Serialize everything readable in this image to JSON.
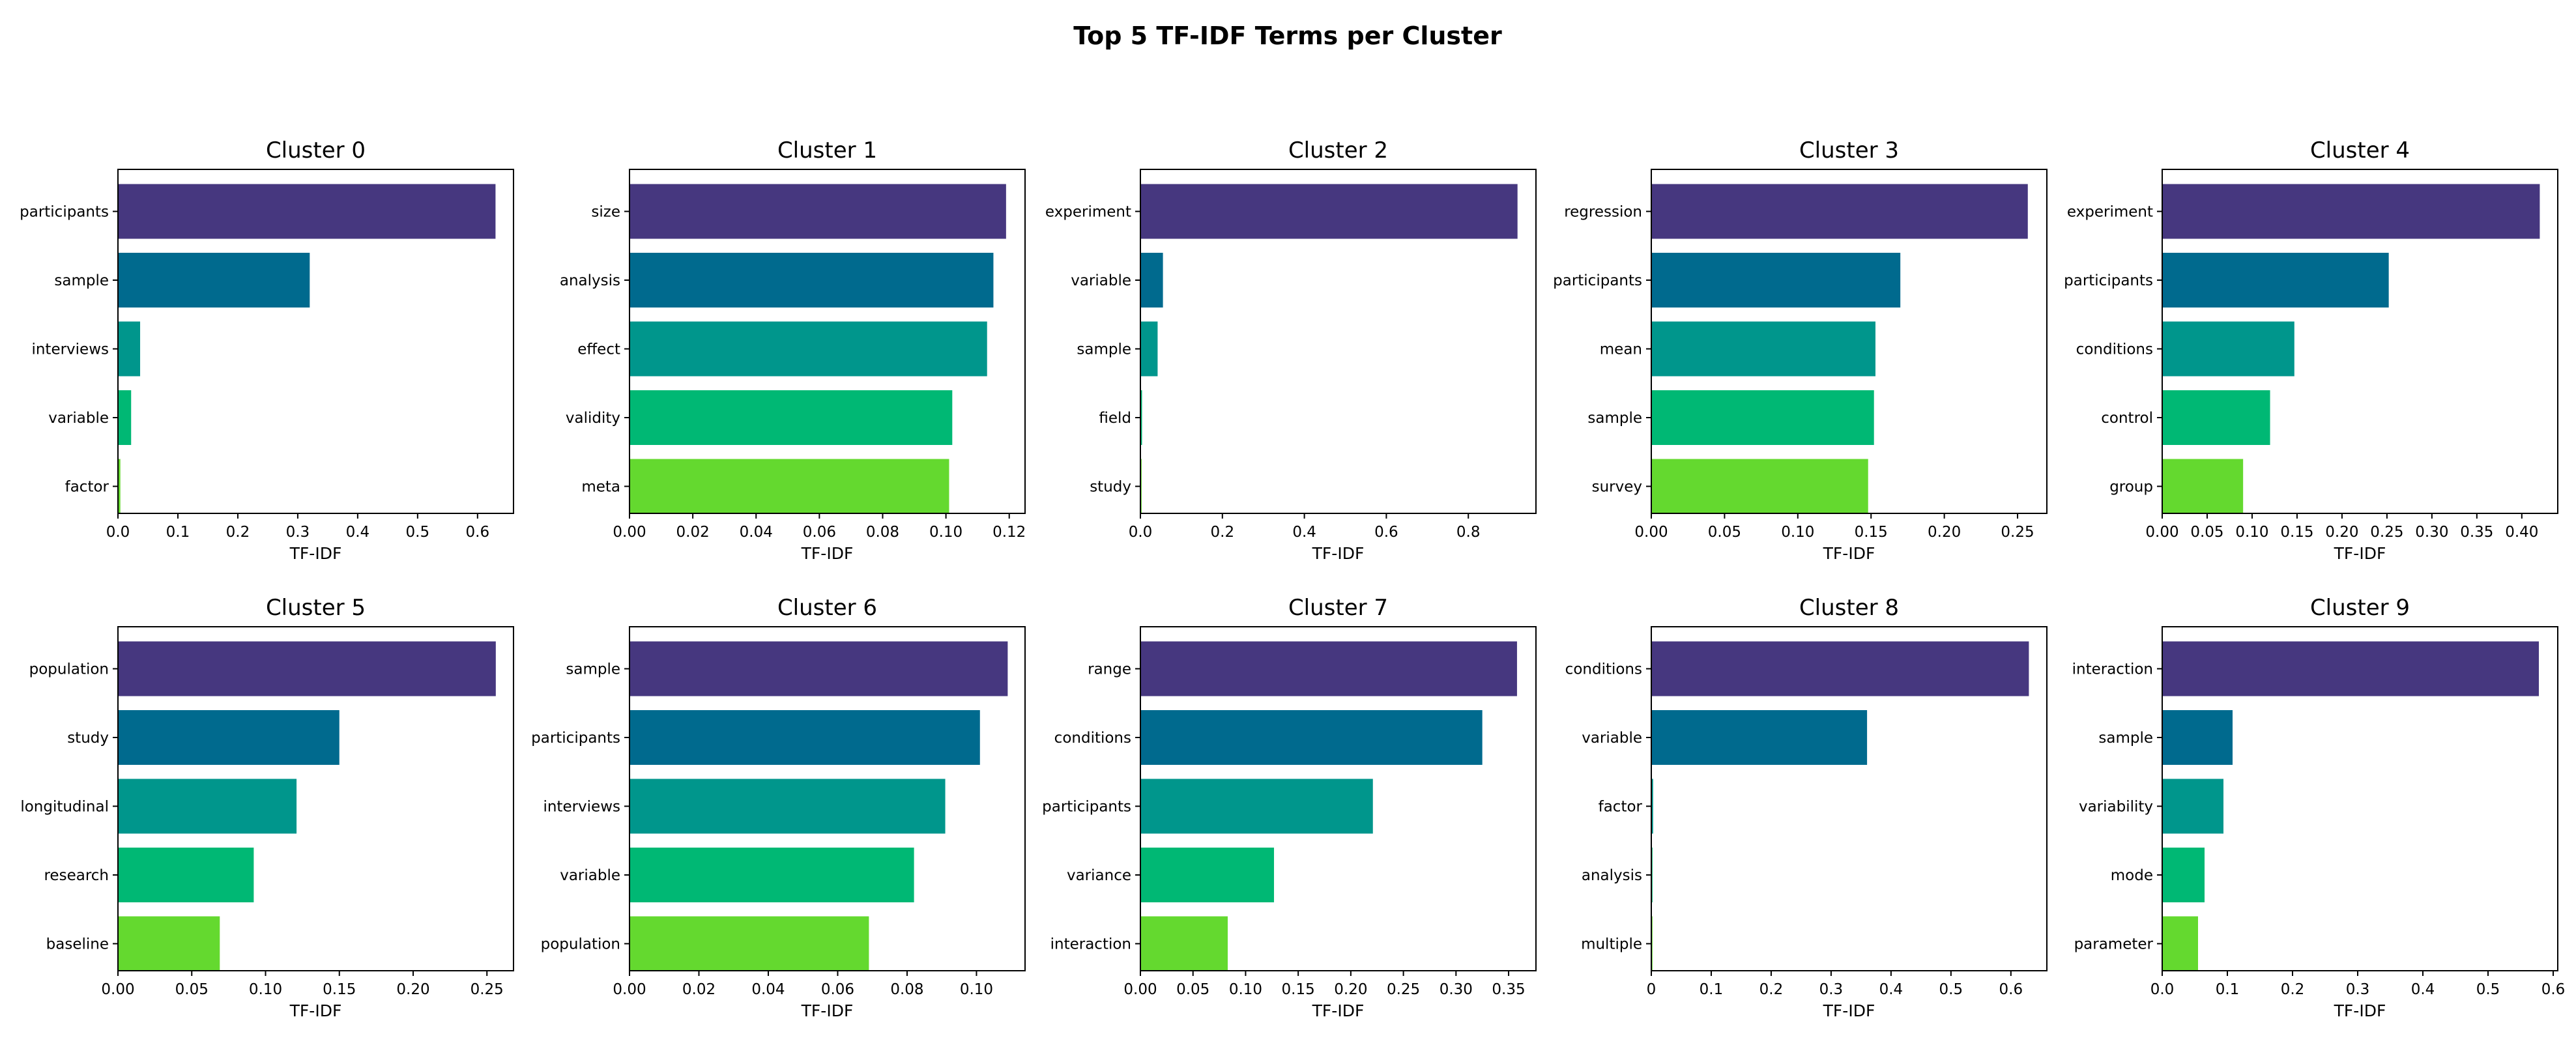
{
  "figure": {
    "title": "Top 5 TF-IDF Terms per Cluster"
  },
  "colors": [
    "#46377f",
    "#006a8e",
    "#00968c",
    "#00b874",
    "#64d92f"
  ],
  "chart_data": [
    {
      "type": "bar",
      "orientation": "horizontal",
      "title": "Cluster 0",
      "xlabel": "TF-IDF",
      "categories": [
        "participants",
        "sample",
        "interviews",
        "variable",
        "factor"
      ],
      "values": [
        0.63,
        0.32,
        0.037,
        0.022,
        0.004
      ],
      "xlim": [
        0,
        0.66
      ],
      "xticks": [
        0.0,
        0.1,
        0.2,
        0.3,
        0.4,
        0.5,
        0.6
      ],
      "xtick_labels": [
        "0.0",
        "0.1",
        "0.2",
        "0.3",
        "0.4",
        "0.5",
        "0.6"
      ]
    },
    {
      "type": "bar",
      "orientation": "horizontal",
      "title": "Cluster 1",
      "xlabel": "TF-IDF",
      "categories": [
        "size",
        "analysis",
        "effect",
        "validity",
        "meta"
      ],
      "values": [
        0.119,
        0.115,
        0.113,
        0.102,
        0.101
      ],
      "xlim": [
        0,
        0.125
      ],
      "xticks": [
        0.0,
        0.02,
        0.04,
        0.06,
        0.08,
        0.1,
        0.12
      ],
      "xtick_labels": [
        "0.00",
        "0.02",
        "0.04",
        "0.06",
        "0.08",
        "0.10",
        "0.12"
      ]
    },
    {
      "type": "bar",
      "orientation": "horizontal",
      "title": "Cluster 2",
      "xlabel": "TF-IDF",
      "categories": [
        "experiment",
        "variable",
        "sample",
        "field",
        "study"
      ],
      "values": [
        0.92,
        0.055,
        0.042,
        0.004,
        0.003
      ],
      "xlim": [
        0,
        0.965
      ],
      "xticks": [
        0.0,
        0.2,
        0.4,
        0.6,
        0.8
      ],
      "xtick_labels": [
        "0.0",
        "0.2",
        "0.4",
        "0.6",
        "0.8"
      ]
    },
    {
      "type": "bar",
      "orientation": "horizontal",
      "title": "Cluster 3",
      "xlabel": "TF-IDF",
      "categories": [
        "regression",
        "participants",
        "mean",
        "sample",
        "survey"
      ],
      "values": [
        0.257,
        0.17,
        0.153,
        0.152,
        0.148
      ],
      "xlim": [
        0,
        0.27
      ],
      "xticks": [
        0.0,
        0.05,
        0.1,
        0.15,
        0.2,
        0.25
      ],
      "xtick_labels": [
        "0.00",
        "0.05",
        "0.10",
        "0.15",
        "0.20",
        "0.25"
      ]
    },
    {
      "type": "bar",
      "orientation": "horizontal",
      "title": "Cluster 4",
      "xlabel": "TF-IDF",
      "categories": [
        "experiment",
        "participants",
        "conditions",
        "control",
        "group"
      ],
      "values": [
        0.42,
        0.252,
        0.147,
        0.12,
        0.09
      ],
      "xlim": [
        0,
        0.44
      ],
      "xticks": [
        0.0,
        0.05,
        0.1,
        0.15,
        0.2,
        0.25,
        0.3,
        0.35,
        0.4
      ],
      "xtick_labels": [
        "0.00",
        "0.05",
        "0.10",
        "0.15",
        "0.20",
        "0.25",
        "0.30",
        "0.35",
        "0.40"
      ]
    },
    {
      "type": "bar",
      "orientation": "horizontal",
      "title": "Cluster 5",
      "xlabel": "TF-IDF",
      "categories": [
        "population",
        "study",
        "longitudinal",
        "research",
        "baseline"
      ],
      "values": [
        0.256,
        0.15,
        0.121,
        0.092,
        0.069
      ],
      "xlim": [
        0,
        0.268
      ],
      "xticks": [
        0.0,
        0.05,
        0.1,
        0.15,
        0.2,
        0.25
      ],
      "xtick_labels": [
        "0.00",
        "0.05",
        "0.10",
        "0.15",
        "0.20",
        "0.25"
      ]
    },
    {
      "type": "bar",
      "orientation": "horizontal",
      "title": "Cluster 6",
      "xlabel": "TF-IDF",
      "categories": [
        "sample",
        "participants",
        "interviews",
        "variable",
        "population"
      ],
      "values": [
        0.109,
        0.101,
        0.091,
        0.082,
        0.069
      ],
      "xlim": [
        0,
        0.114
      ],
      "xticks": [
        0.0,
        0.02,
        0.04,
        0.06,
        0.08,
        0.1
      ],
      "xtick_labels": [
        "0.00",
        "0.02",
        "0.04",
        "0.06",
        "0.08",
        "0.10"
      ]
    },
    {
      "type": "bar",
      "orientation": "horizontal",
      "title": "Cluster 7",
      "xlabel": "TF-IDF",
      "categories": [
        "range",
        "conditions",
        "participants",
        "variance",
        "interaction"
      ],
      "values": [
        0.358,
        0.325,
        0.221,
        0.127,
        0.083
      ],
      "xlim": [
        0,
        0.376
      ],
      "xticks": [
        0.0,
        0.05,
        0.1,
        0.15,
        0.2,
        0.25,
        0.3,
        0.35
      ],
      "xtick_labels": [
        "0.00",
        "0.05",
        "0.10",
        "0.15",
        "0.20",
        "0.25",
        "0.30",
        "0.35"
      ]
    },
    {
      "type": "bar",
      "orientation": "horizontal",
      "title": "Cluster 8",
      "xlabel": "TF-IDF",
      "categories": [
        "conditions",
        "variable",
        "factor",
        "analysis",
        "multiple"
      ],
      "values": [
        0.63,
        0.36,
        0.003,
        0.002,
        0.002
      ],
      "xlim": [
        0,
        0.66
      ],
      "xticks": [
        0.0,
        0.1,
        0.2,
        0.3,
        0.4,
        0.5,
        0.6
      ],
      "xtick_labels": [
        "0",
        "0.1",
        "0.2",
        "0.3",
        "0.4",
        "0.5",
        "0.6"
      ]
    },
    {
      "type": "bar",
      "orientation": "horizontal",
      "title": "Cluster 9",
      "xlabel": "TF-IDF",
      "categories": [
        "interaction",
        "sample",
        "variability",
        "mode",
        "parameter"
      ],
      "values": [
        0.578,
        0.108,
        0.094,
        0.065,
        0.055
      ],
      "xlim": [
        0,
        0.607
      ],
      "xticks": [
        0.0,
        0.1,
        0.2,
        0.3,
        0.4,
        0.5,
        0.6
      ],
      "xtick_labels": [
        "0.0",
        "0.1",
        "0.2",
        "0.3",
        "0.4",
        "0.5",
        "0.6"
      ]
    }
  ]
}
